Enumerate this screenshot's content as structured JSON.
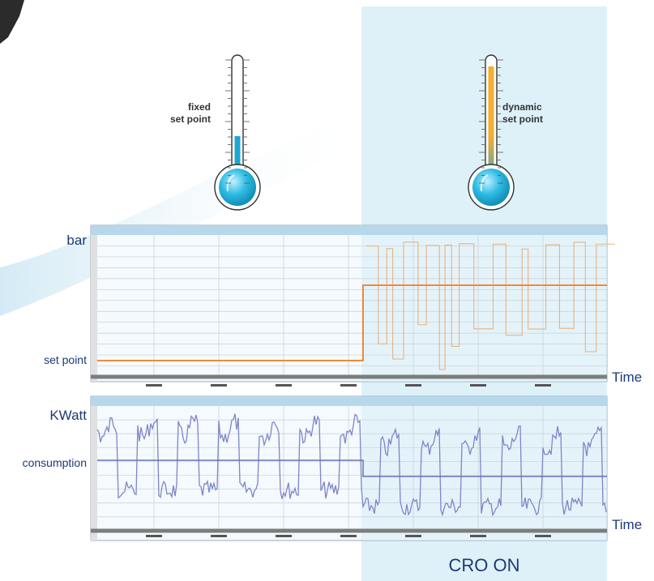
{
  "labels": {
    "fixed": "fixed\nset point",
    "dynamic": "dynamic\nset point",
    "bar": "bar",
    "set_point": "set point",
    "kwatt": "KWatt",
    "consumption": "consumption",
    "time_top": "Time",
    "time_bottom": "Time",
    "cro_on": "CRO ON"
  },
  "colors": {
    "panel_bg": "#e6f4fb",
    "cro_region": "#d3ecf7",
    "orange_line": "#f08a3c",
    "pressure_trace": "#e9b27e",
    "power_trace": "#7f85c8",
    "average_line": "#7f85c8",
    "thermo_blue": "#1ba7d0",
    "thermo_orange": "#f6ae2d"
  },
  "thermometers": [
    {
      "name": "fixed",
      "fill_level": 0.22,
      "gradient": false
    },
    {
      "name": "dynamic",
      "fill_level": 0.93,
      "gradient": true
    }
  ],
  "chart_data": [
    {
      "type": "line",
      "title": "",
      "ylabel": "bar",
      "xlabel": "Time",
      "series": [
        {
          "name": "set point",
          "segments": [
            [
              0.0,
              0.12
            ],
            [
              0.49,
              0.12
            ],
            [
              0.49,
              0.67
            ],
            [
              1.0,
              0.67
            ]
          ]
        }
      ],
      "trace_note_regions": [
        "fixed",
        "dynamic"
      ]
    },
    {
      "type": "line",
      "title": "",
      "ylabel": "KWatt",
      "xlabel": "Time",
      "series": [
        {
          "name": "consumption",
          "average_before": 0.55,
          "average_after": 0.42,
          "switch_at": 0.49
        }
      ]
    }
  ]
}
